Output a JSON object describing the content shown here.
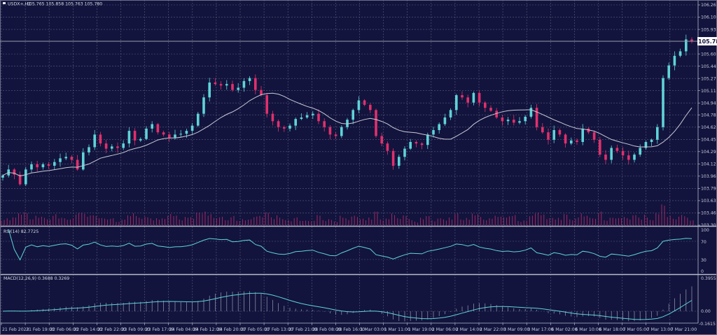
{
  "header": {
    "symbol": "USDX+,H1",
    "ohlc": "105.765 105.858 105.763 105.780"
  },
  "rsi_panel": {
    "label": "RSI(14) 82.7725",
    "ticks": [
      "100",
      "70",
      "30",
      "0"
    ]
  },
  "macd_panel": {
    "label": "MACD(12,26,9) 0.3688 0.3269",
    "ticks": [
      "0.3955",
      "0.00",
      "-0.1615"
    ]
  },
  "colors": {
    "background": "#12143d",
    "bull": "#5fd3d8",
    "bear": "#e0306c",
    "ma": "#c9c9d6",
    "volume": "#b02a66",
    "grid": "#5a5c80",
    "indicator": "#5fd3d8"
  },
  "chart_data": {
    "type": "candlestick",
    "price_axis": {
      "ticks": [
        "106.265",
        "106.100",
        "105.935",
        "105.605",
        "105.440",
        "105.275",
        "105.110",
        "104.945",
        "104.785",
        "104.620",
        "104.455",
        "104.290",
        "104.125",
        "103.960",
        "103.795",
        "103.630",
        "103.465",
        "103.300"
      ],
      "ylim": [
        103.3,
        106.265
      ],
      "current_price": "105.780"
    },
    "time_axis": {
      "ticks": [
        "21 Feb 2023",
        "21 Feb 19:00",
        "22 Feb 06:00",
        "22 Feb 14:00",
        "22 Feb 22:00",
        "23 Feb 09:00",
        "23 Feb 17:00",
        "24 Feb 04:00",
        "24 Feb 12:00",
        "24 Feb 20:00",
        "27 Feb 05:00",
        "27 Feb 13:00",
        "27 Feb 21:00",
        "28 Feb 08:00",
        "28 Feb 16:00",
        "1 Mar 03:00",
        "1 Mar 11:00",
        "1 Mar 19:00",
        "2 Mar 06:00",
        "2 Mar 14:00",
        "2 Mar 22:00",
        "3 Mar 09:00",
        "3 Mar 17:00",
        "6 Mar 02:00",
        "6 Mar 10:00",
        "6 Mar 18:00",
        "7 Mar 05:00",
        "7 Mar 13:00",
        "7 Mar 21:00"
      ]
    },
    "close": [
      103.97,
      104.05,
      103.98,
      103.85,
      104.05,
      104.12,
      104.08,
      104.12,
      104.1,
      104.15,
      104.2,
      104.22,
      104.18,
      104.05,
      104.28,
      104.35,
      104.52,
      104.4,
      104.33,
      104.36,
      104.34,
      104.4,
      104.57,
      104.44,
      104.46,
      104.6,
      104.66,
      104.55,
      104.52,
      104.48,
      104.52,
      104.53,
      104.57,
      104.64,
      104.8,
      105.02,
      105.22,
      105.2,
      105.18,
      105.2,
      105.12,
      105.15,
      105.24,
      105.28,
      105.12,
      105.05,
      104.8,
      104.7,
      104.62,
      104.6,
      104.64,
      104.73,
      104.75,
      104.78,
      104.8,
      104.7,
      104.62,
      104.52,
      104.5,
      104.62,
      104.72,
      104.85,
      104.98,
      104.92,
      104.85,
      104.5,
      104.4,
      104.3,
      104.1,
      104.22,
      104.33,
      104.42,
      104.4,
      104.38,
      104.52,
      104.58,
      104.66,
      104.75,
      104.85,
      105.05,
      105.02,
      104.95,
      105.08,
      104.95,
      104.88,
      104.84,
      104.75,
      104.7,
      104.72,
      104.68,
      104.7,
      104.76,
      104.88,
      104.62,
      104.55,
      104.45,
      104.58,
      104.52,
      104.4,
      104.44,
      104.42,
      104.6,
      104.55,
      104.45,
      104.25,
      104.18,
      104.34,
      104.3,
      104.24,
      104.18,
      104.25,
      104.34,
      104.42,
      104.45,
      104.62,
      105.28,
      105.45,
      105.58,
      105.64,
      105.8,
      105.78
    ],
    "indicators": [
      "moving average",
      "volume",
      "RSI(14)",
      "MACD(12,26,9)"
    ],
    "grid": true
  }
}
